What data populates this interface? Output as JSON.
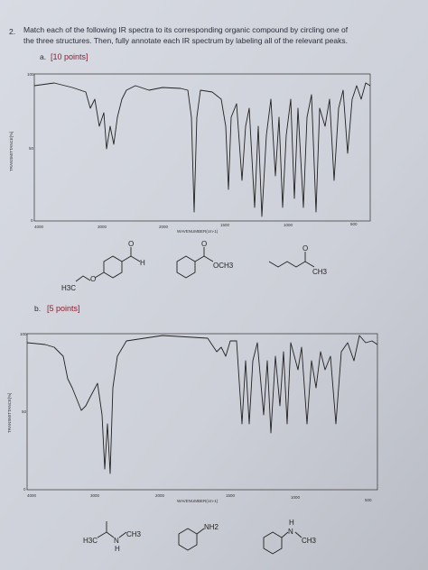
{
  "question": {
    "number": "2.",
    "lines": [
      "Match each of the following IR spectra to its corresponding organic compound by circling one of",
      "the three structures. Then, fully annotate each IR spectrum by labeling all of the relevant peaks."
    ]
  },
  "parts": [
    {
      "label": "a.",
      "points": "[10 points]",
      "spectrum": {
        "y_axis_label": "TRANSMITTANCE[%]",
        "x_axis_label": "WAVENUMBER(cm-1)",
        "y_ticks": [
          "100",
          "50",
          "0"
        ],
        "x_ticks": [
          "4000",
          "3000",
          "2000",
          "1500",
          "1000",
          "500"
        ]
      },
      "structures": [
        [
          "H3C",
          "O",
          "O",
          "H"
        ],
        [
          "O",
          "OCH3"
        ],
        [
          "O",
          "CH3"
        ]
      ]
    },
    {
      "label": "b.",
      "points": "[5 points]",
      "spectrum": {
        "y_axis_label": "TRANSMITTANCE[%]",
        "x_axis_label": "WAVENUMBER(cm-1)",
        "y_ticks": [
          "100",
          "50",
          "0"
        ],
        "x_ticks": [
          "4000",
          "3000",
          "2000",
          "1500",
          "1000",
          "500"
        ]
      },
      "structures": [
        [
          "H3C",
          "N",
          "H",
          "CH3"
        ],
        [
          "NH2"
        ],
        [
          "H",
          "N",
          "CH3"
        ]
      ]
    }
  ]
}
